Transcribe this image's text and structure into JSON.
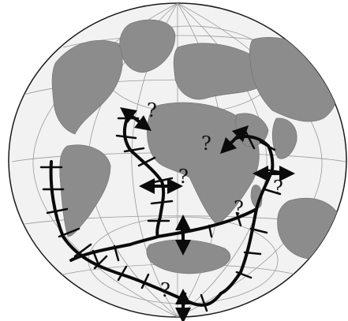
{
  "map": {
    "question_marks": [
      {
        "id": "q1",
        "text": "?"
      },
      {
        "id": "q2",
        "text": "?"
      },
      {
        "id": "q3",
        "text": "?"
      },
      {
        "id": "q4",
        "text": "?"
      },
      {
        "id": "q5",
        "text": "?"
      },
      {
        "id": "q6",
        "text": "?"
      }
    ],
    "colors": {
      "ocean": "#f2f2f2",
      "land": "#8c8c8c",
      "grid": "#9a9a9a",
      "ridge": "#0b0b0b"
    }
  }
}
